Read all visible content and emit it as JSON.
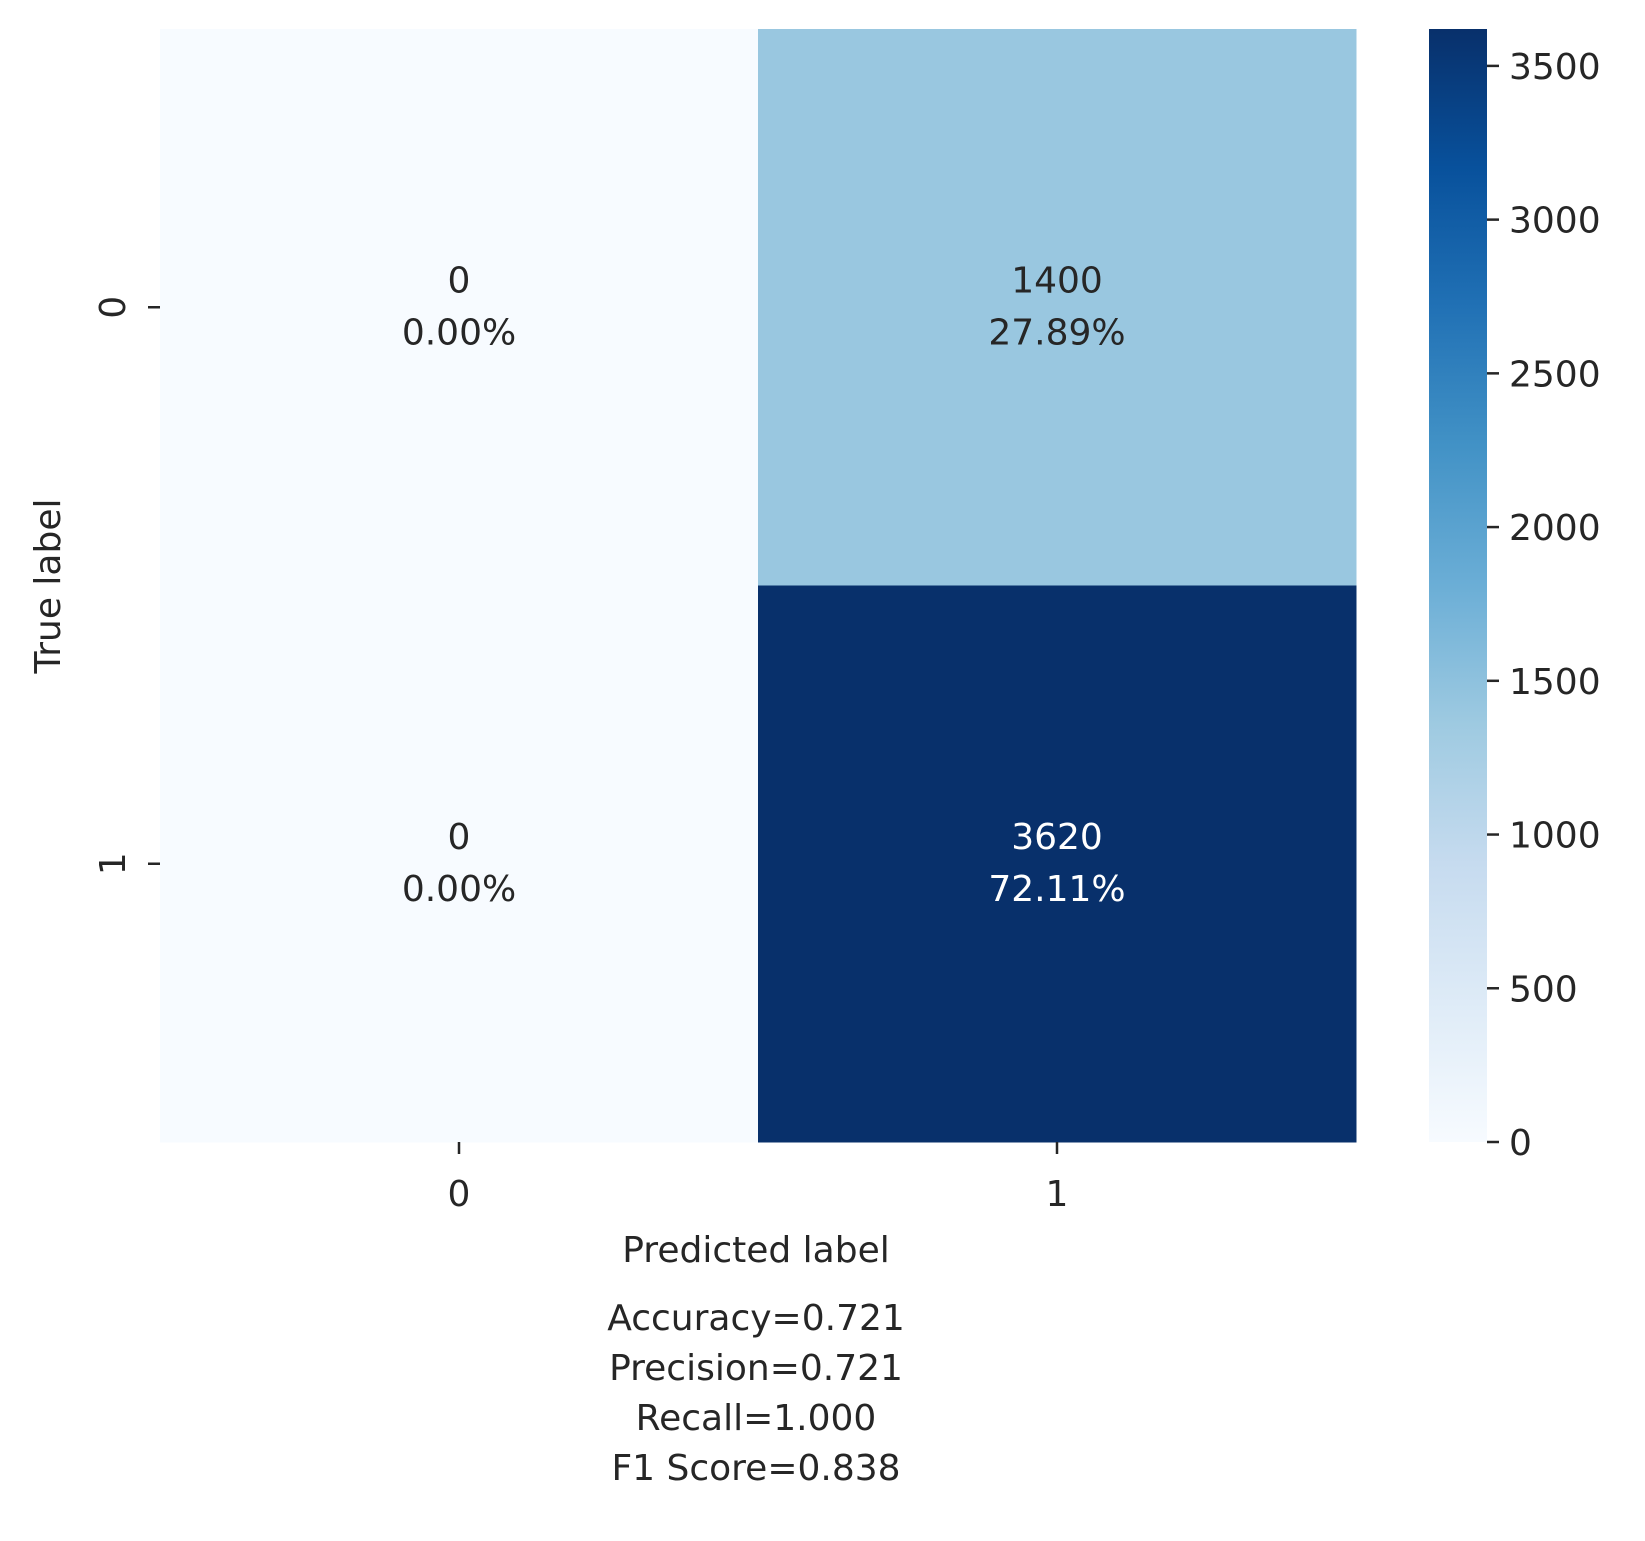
{
  "chart_data": {
    "type": "heatmap",
    "title": "",
    "xlabel": "Predicted label",
    "ylabel": "True label",
    "x_categories": [
      "0",
      "1"
    ],
    "y_categories": [
      "0",
      "1"
    ],
    "matrix": [
      [
        0,
        1400
      ],
      [
        0,
        3620
      ]
    ],
    "cell_labels": [
      [
        {
          "count": "0",
          "percent": "0.00%"
        },
        {
          "count": "1400",
          "percent": "27.89%"
        }
      ],
      [
        {
          "count": "0",
          "percent": "0.00%"
        },
        {
          "count": "3620",
          "percent": "72.11%"
        }
      ]
    ],
    "colormap": "Blues",
    "colorbar": {
      "range": [
        0,
        3620
      ],
      "ticks": [
        0,
        500,
        1000,
        1500,
        2000,
        2500,
        3000,
        3500
      ],
      "tick_labels": [
        "0",
        "500",
        "1000",
        "1500",
        "2000",
        "2500",
        "3000",
        "3500"
      ]
    },
    "stats_lines": [
      "Accuracy=0.721",
      "Precision=0.721",
      "Recall=1.000",
      "F1 Score=0.838"
    ]
  }
}
